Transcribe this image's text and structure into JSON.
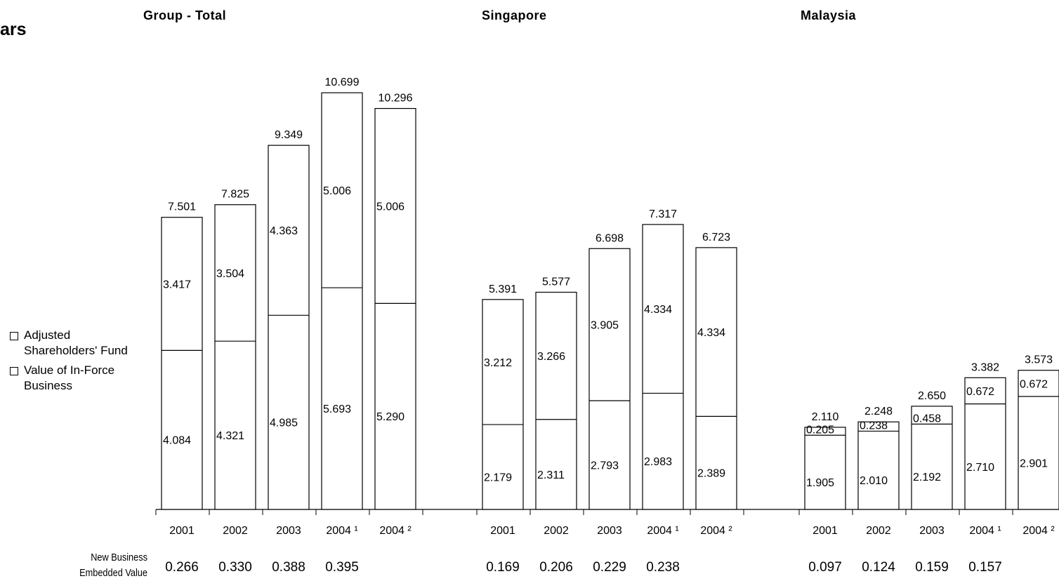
{
  "page_title": "ars",
  "legend": [
    {
      "label": "Adjusted Shareholders' Fund"
    },
    {
      "label": "Value of In-Force Business"
    }
  ],
  "nbev_label": {
    "line1": "New Business",
    "line2": "Embedded Value"
  },
  "chart_data": {
    "type": "bar",
    "stacked": true,
    "ylim": [
      0,
      12
    ],
    "groups": [
      {
        "title": "Group - Total",
        "categories": [
          "2001",
          "2002",
          "2003",
          "2004 ¹",
          "2004 ²"
        ],
        "value_of_in_force_business": [
          4.084,
          4.321,
          4.985,
          5.693,
          5.29
        ],
        "adjusted_shareholders_fund": [
          3.417,
          3.504,
          4.363,
          5.006,
          5.006
        ],
        "totals": [
          7.501,
          7.825,
          9.349,
          10.699,
          10.296
        ],
        "totals_labels": [
          "7.501",
          "7.825",
          "9.349",
          "10.699",
          "10.296"
        ],
        "lower_labels": [
          "4.084",
          "4.321",
          "4.985",
          "5.693",
          "5.290"
        ],
        "upper_labels": [
          "3.417",
          "3.504",
          "4.363",
          "5.006",
          "5.006"
        ],
        "new_business_embedded_value": [
          "0.266",
          "0.330",
          "0.388",
          "0.395",
          ""
        ]
      },
      {
        "title": "Singapore",
        "categories": [
          "2001",
          "2002",
          "2003",
          "2004 ¹",
          "2004 ²"
        ],
        "value_of_in_force_business": [
          2.179,
          2.311,
          2.793,
          2.983,
          2.389
        ],
        "adjusted_shareholders_fund": [
          3.212,
          3.266,
          3.905,
          4.334,
          4.334
        ],
        "totals": [
          5.391,
          5.577,
          6.698,
          7.317,
          6.723
        ],
        "totals_labels": [
          "5.391",
          "5.577",
          "6.698",
          "7.317",
          "6.723"
        ],
        "lower_labels": [
          "2.179",
          "2.311",
          "2.793",
          "2.983",
          "2.389"
        ],
        "upper_labels": [
          "3.212",
          "3.266",
          "3.905",
          "4.334",
          "4.334"
        ],
        "new_business_embedded_value": [
          "0.169",
          "0.206",
          "0.229",
          "0.238",
          ""
        ]
      },
      {
        "title": "Malaysia",
        "categories": [
          "2001",
          "2002",
          "2003",
          "2004 ¹",
          "2004 ²"
        ],
        "value_of_in_force_business": [
          1.905,
          2.01,
          2.192,
          2.71,
          2.901
        ],
        "adjusted_shareholders_fund": [
          0.205,
          0.238,
          0.458,
          0.672,
          0.672
        ],
        "totals": [
          2.11,
          2.248,
          2.65,
          3.382,
          3.573
        ],
        "totals_labels": [
          "2.110",
          "2.248",
          "2.650",
          "3.382",
          "3.573"
        ],
        "lower_labels": [
          "1.905",
          "2.010",
          "2.192",
          "2.710",
          "2.901"
        ],
        "upper_labels": [
          "0.205",
          "0.238",
          "0.458",
          "0.672",
          "0.672"
        ],
        "new_business_embedded_value": [
          "0.097",
          "0.124",
          "0.159",
          "0.157",
          ""
        ]
      }
    ]
  }
}
